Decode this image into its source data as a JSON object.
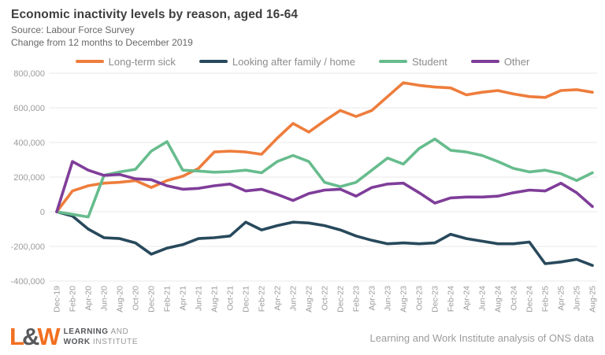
{
  "header": {
    "title": "Economic inactivity levels by reason, aged 16-64",
    "source": "Source: Labour Force Survey",
    "subtitle": "Change from 12 months to December 2019"
  },
  "chart_data": {
    "type": "line",
    "title": "Economic inactivity levels by reason, aged 16-64",
    "x": [
      "Dec-19",
      "Feb-20",
      "Apr-20",
      "Jun-20",
      "Aug-20",
      "Oct-20",
      "Dec-20",
      "Feb-21",
      "Apr-21",
      "Jun-21",
      "Aug-21",
      "Oct-21",
      "Dec-21",
      "Feb-22",
      "Apr-22",
      "Jun-22",
      "Aug-22",
      "Oct-22",
      "Dec-22",
      "Feb-23",
      "Apr-23",
      "Jun-23",
      "Aug-23",
      "Oct-23",
      "Dec-23",
      "Feb-24",
      "Apr-24",
      "Jun-24",
      "Aug-24",
      "Oct-24",
      "Dec-24",
      "Feb-25",
      "Apr-25",
      "Jun-25",
      "Aug-25"
    ],
    "ylim": [
      -400000,
      800000
    ],
    "ytick_values": [
      800000,
      600000,
      400000,
      200000,
      0,
      -200000,
      -400000
    ],
    "ytick_labels": [
      "800,000",
      "600,000",
      "400,000",
      "200,000",
      "0",
      "-200,000",
      "-400,000"
    ],
    "grid": true,
    "legend_position": "top",
    "series": [
      {
        "name": "Long-term sick",
        "color": "#ee7d3c",
        "values": [
          0,
          120000,
          150000,
          165000,
          170000,
          180000,
          140000,
          180000,
          205000,
          250000,
          345000,
          350000,
          345000,
          332000,
          425000,
          510000,
          460000,
          525000,
          585000,
          550000,
          585000,
          665000,
          745000,
          730000,
          720000,
          715000,
          675000,
          690000,
          700000,
          680000,
          665000,
          660000,
          700000,
          705000,
          690000
        ]
      },
      {
        "name": "Looking after family / home",
        "color": "#28495c",
        "values": [
          0,
          -25000,
          -100000,
          -150000,
          -155000,
          -180000,
          -245000,
          -210000,
          -190000,
          -155000,
          -150000,
          -140000,
          -60000,
          -105000,
          -80000,
          -60000,
          -65000,
          -80000,
          -105000,
          -140000,
          -165000,
          -185000,
          -180000,
          -185000,
          -180000,
          -130000,
          -155000,
          -170000,
          -185000,
          -185000,
          -175000,
          -300000,
          -290000,
          -275000,
          -310000
        ]
      },
      {
        "name": "Student",
        "color": "#67bc8d",
        "values": [
          0,
          -15000,
          -30000,
          210000,
          230000,
          245000,
          350000,
          405000,
          240000,
          235000,
          228000,
          232000,
          240000,
          225000,
          290000,
          325000,
          290000,
          170000,
          145000,
          170000,
          240000,
          310000,
          275000,
          365000,
          420000,
          355000,
          345000,
          325000,
          290000,
          250000,
          230000,
          240000,
          220000,
          180000,
          225000
        ]
      },
      {
        "name": "Other",
        "color": "#7f3d99",
        "values": [
          0,
          290000,
          240000,
          210000,
          215000,
          190000,
          185000,
          150000,
          130000,
          135000,
          150000,
          160000,
          120000,
          130000,
          100000,
          65000,
          105000,
          125000,
          130000,
          90000,
          140000,
          160000,
          165000,
          110000,
          50000,
          80000,
          85000,
          85000,
          90000,
          110000,
          125000,
          120000,
          165000,
          110000,
          30000
        ]
      }
    ]
  },
  "footer": {
    "logo": {
      "l": "L",
      "amp": "&",
      "w": "W",
      "line1_bold": "LEARNING",
      "line1_rest": "AND",
      "line2_bold": "WORK",
      "line2_rest": "INSTITUTE"
    },
    "credit": "Learning and Work Institute analysis of ONS data"
  }
}
